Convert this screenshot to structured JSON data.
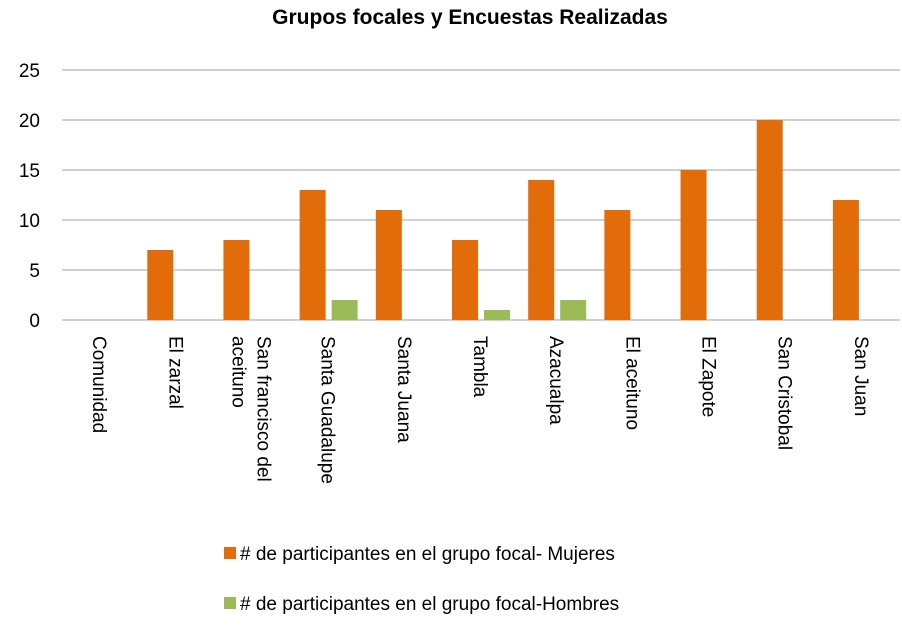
{
  "chart_data": {
    "type": "bar",
    "title": "Grupos focales y Encuestas Realizadas",
    "categories": [
      "Comunidad",
      "El zarzal",
      "San francisco del aceituno",
      "Santa Guadalupe",
      "Santa Juana",
      "Tambla",
      "Azacualpa",
      "El aceituno",
      "El Zapote",
      "San Cristobal",
      "San Juan"
    ],
    "series": [
      {
        "name": "# de participantes en el grupo focal- Mujeres",
        "color": "#e36c0a",
        "values": [
          null,
          7,
          8,
          13,
          11,
          8,
          14,
          11,
          15,
          20,
          12
        ]
      },
      {
        "name": "# de participantes en el grupo focal-Hombres",
        "color": "#9bbb59",
        "values": [
          null,
          null,
          null,
          2,
          null,
          1,
          2,
          null,
          null,
          null,
          null
        ]
      }
    ],
    "ylim": [
      0,
      25
    ],
    "yticks": [
      0,
      5,
      10,
      15,
      20,
      25
    ],
    "grid": true,
    "legend": "bottom"
  }
}
